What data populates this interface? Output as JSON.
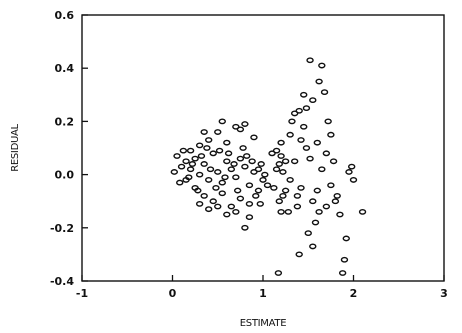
{
  "chart_data": {
    "type": "scatter",
    "title": "",
    "xlabel": "ESTIMATE",
    "ylabel": "RESIDUAL",
    "xlim": [
      -1,
      3
    ],
    "ylim": [
      -0.4,
      0.6
    ],
    "xticks": [
      -1,
      0,
      1,
      2,
      3
    ],
    "xtick_labels": [
      "-1",
      "0",
      "1",
      "2",
      "3"
    ],
    "yticks": [
      -0.4,
      -0.2,
      0.0,
      0.2,
      0.4,
      0.6
    ],
    "ytick_labels": [
      "-0.4",
      "-0.2",
      "0.0",
      "0.2",
      "0.4",
      "0.6"
    ],
    "grid": false,
    "legend": "none",
    "marker": "open-circle",
    "series": [
      {
        "points": [
          [
            0.05,
            0.07
          ],
          [
            0.1,
            0.03
          ],
          [
            0.15,
            0.05
          ],
          [
            0.2,
            0.02
          ],
          [
            0.25,
            0.06
          ],
          [
            0.3,
            0.0
          ],
          [
            0.35,
            0.04
          ],
          [
            0.4,
            -0.02
          ],
          [
            0.45,
            0.08
          ],
          [
            0.5,
            0.01
          ],
          [
            0.55,
            -0.03
          ],
          [
            0.6,
            0.05
          ],
          [
            0.65,
            0.02
          ],
          [
            0.7,
            -0.01
          ],
          [
            0.75,
            0.06
          ],
          [
            0.8,
            0.03
          ],
          [
            0.85,
            -0.04
          ],
          [
            0.9,
            0.01
          ],
          [
            0.95,
            0.02
          ],
          [
            1.0,
            -0.02
          ],
          [
            0.15,
            -0.02
          ],
          [
            0.25,
            -0.05
          ],
          [
            0.35,
            -0.08
          ],
          [
            0.45,
            -0.1
          ],
          [
            0.55,
            -0.07
          ],
          [
            0.65,
            -0.12
          ],
          [
            0.75,
            -0.09
          ],
          [
            0.85,
            -0.11
          ],
          [
            0.95,
            -0.06
          ],
          [
            0.2,
            0.09
          ],
          [
            0.3,
            0.11
          ],
          [
            0.4,
            0.13
          ],
          [
            0.5,
            0.16
          ],
          [
            0.6,
            0.12
          ],
          [
            0.7,
            0.18
          ],
          [
            0.8,
            0.19
          ],
          [
            0.9,
            0.14
          ],
          [
            0.35,
            0.16
          ],
          [
            0.55,
            0.2
          ],
          [
            0.75,
            0.17
          ],
          [
            0.02,
            0.01
          ],
          [
            0.08,
            -0.03
          ],
          [
            0.12,
            0.09
          ],
          [
            0.18,
            -0.01
          ],
          [
            0.22,
            0.04
          ],
          [
            0.28,
            -0.06
          ],
          [
            0.32,
            0.07
          ],
          [
            0.38,
            0.1
          ],
          [
            0.42,
            0.02
          ],
          [
            0.48,
            -0.05
          ],
          [
            0.52,
            0.09
          ],
          [
            0.58,
            -0.01
          ],
          [
            0.62,
            0.08
          ],
          [
            0.68,
            0.04
          ],
          [
            0.72,
            -0.06
          ],
          [
            0.78,
            0.1
          ],
          [
            0.82,
            0.07
          ],
          [
            0.88,
            0.05
          ],
          [
            0.92,
            -0.08
          ],
          [
            0.98,
            0.04
          ],
          [
            1.02,
            0.0
          ],
          [
            1.05,
            -0.04
          ],
          [
            0.6,
            -0.15
          ],
          [
            0.7,
            -0.14
          ],
          [
            0.85,
            -0.16
          ],
          [
            0.97,
            -0.11
          ],
          [
            0.4,
            -0.13
          ],
          [
            0.5,
            -0.12
          ],
          [
            0.3,
            -0.11
          ],
          [
            0.8,
            -0.2
          ],
          [
            1.1,
            0.08
          ],
          [
            1.12,
            -0.05
          ],
          [
            1.15,
            0.02
          ],
          [
            1.18,
            -0.1
          ],
          [
            1.2,
            0.12
          ],
          [
            1.22,
            -0.08
          ],
          [
            1.25,
            0.05
          ],
          [
            1.28,
            -0.14
          ],
          [
            1.15,
            0.09
          ],
          [
            1.2,
            -0.14
          ],
          [
            1.18,
            0.04
          ],
          [
            1.22,
            0.01
          ],
          [
            1.3,
            0.15
          ],
          [
            1.32,
            0.2
          ],
          [
            1.35,
            0.05
          ],
          [
            1.38,
            -0.12
          ],
          [
            1.4,
            0.24
          ],
          [
            1.42,
            -0.05
          ],
          [
            1.45,
            0.3
          ],
          [
            1.48,
            0.1
          ],
          [
            1.5,
            -0.22
          ],
          [
            1.52,
            0.43
          ],
          [
            1.55,
            0.28
          ],
          [
            1.58,
            -0.18
          ],
          [
            1.6,
            0.12
          ],
          [
            1.62,
            0.35
          ],
          [
            1.65,
            0.41
          ],
          [
            1.68,
            0.31
          ],
          [
            1.7,
            0.08
          ],
          [
            1.72,
            0.2
          ],
          [
            1.75,
            -0.04
          ],
          [
            1.78,
            0.05
          ],
          [
            1.8,
            -0.1
          ],
          [
            1.85,
            -0.15
          ],
          [
            1.88,
            -0.37
          ],
          [
            1.9,
            -0.32
          ],
          [
            1.95,
            0.01
          ],
          [
            2.0,
            -0.02
          ],
          [
            2.1,
            -0.14
          ],
          [
            1.98,
            0.03
          ],
          [
            1.92,
            -0.24
          ],
          [
            1.82,
            -0.08
          ],
          [
            1.55,
            -0.27
          ],
          [
            1.35,
            0.23
          ],
          [
            1.48,
            0.25
          ],
          [
            1.4,
            -0.3
          ],
          [
            1.3,
            -0.02
          ],
          [
            1.25,
            -0.06
          ],
          [
            1.45,
            0.18
          ],
          [
            1.6,
            -0.06
          ],
          [
            1.52,
            0.06
          ],
          [
            1.65,
            0.02
          ],
          [
            1.7,
            -0.12
          ],
          [
            1.75,
            0.15
          ],
          [
            1.17,
            -0.37
          ],
          [
            1.2,
            0.07
          ],
          [
            1.42,
            0.13
          ],
          [
            1.38,
            -0.08
          ],
          [
            1.55,
            -0.1
          ],
          [
            1.62,
            -0.14
          ]
        ]
      }
    ]
  }
}
